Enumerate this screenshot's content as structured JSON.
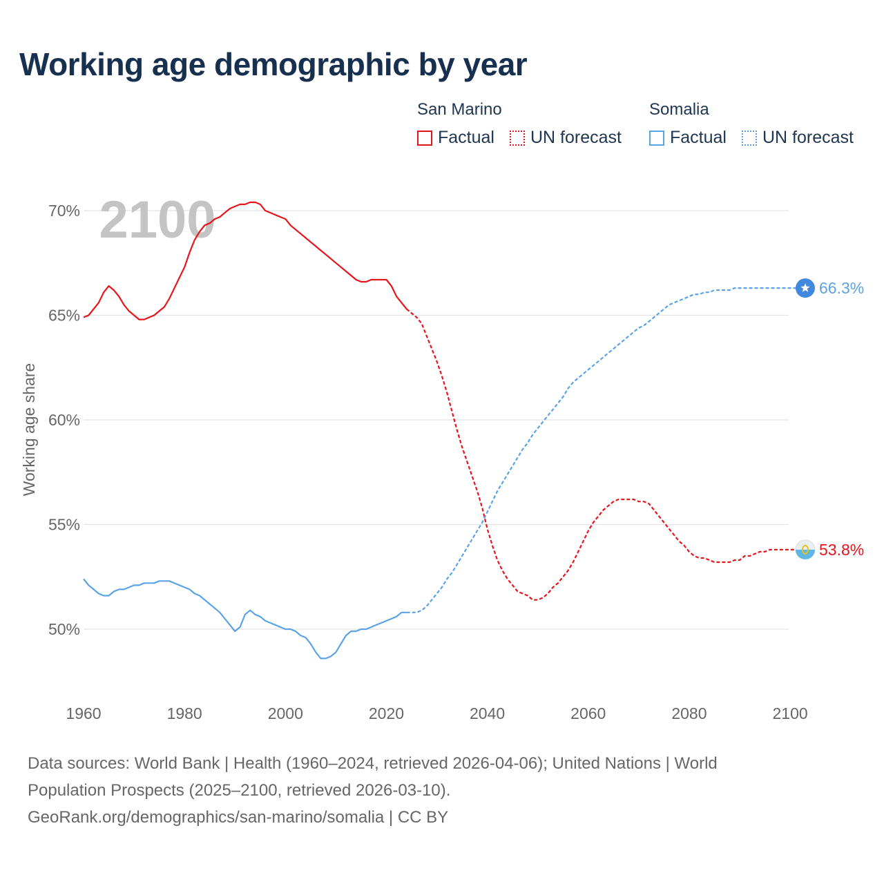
{
  "header": {
    "title": "Working age demographic by year"
  },
  "legend": {
    "groups": [
      {
        "name": "San Marino",
        "color": "#e8141c",
        "items": [
          {
            "label": "Factual",
            "style": "solid"
          },
          {
            "label": "UN forecast",
            "style": "dotted"
          }
        ]
      },
      {
        "name": "Somalia",
        "color": "#5aa3e6",
        "items": [
          {
            "label": "Factual",
            "style": "solid"
          },
          {
            "label": "UN forecast",
            "style": "dotted"
          }
        ]
      }
    ]
  },
  "chart_data": {
    "type": "line",
    "year_watermark": "2100",
    "ylabel": "Working age share",
    "xlabel": "",
    "xlim": [
      1960,
      2103
    ],
    "ylim": [
      47.0,
      71.5
    ],
    "x_ticks": [
      "1960",
      "1980",
      "2000",
      "2020",
      "2040",
      "2060",
      "2080",
      "2100"
    ],
    "y_ticks": [
      {
        "value": 50,
        "label": "50%"
      },
      {
        "value": 55,
        "label": "55%"
      },
      {
        "value": 60,
        "label": "60%"
      },
      {
        "value": 65,
        "label": "65%"
      },
      {
        "value": 70,
        "label": "70%"
      }
    ],
    "factual_end_year": 2024,
    "series": [
      {
        "name": "San Marino",
        "color": "#e8141c",
        "end_label": "53.8%",
        "end_icon": "san-marino-flag-icon",
        "points": [
          [
            1960,
            64.9
          ],
          [
            1961,
            65.0
          ],
          [
            1962,
            65.3
          ],
          [
            1963,
            65.6
          ],
          [
            1964,
            66.1
          ],
          [
            1965,
            66.4
          ],
          [
            1966,
            66.2
          ],
          [
            1967,
            65.9
          ],
          [
            1968,
            65.5
          ],
          [
            1969,
            65.2
          ],
          [
            1970,
            65.0
          ],
          [
            1971,
            64.8
          ],
          [
            1972,
            64.8
          ],
          [
            1973,
            64.9
          ],
          [
            1974,
            65.0
          ],
          [
            1975,
            65.2
          ],
          [
            1976,
            65.4
          ],
          [
            1977,
            65.8
          ],
          [
            1978,
            66.3
          ],
          [
            1979,
            66.8
          ],
          [
            1980,
            67.3
          ],
          [
            1981,
            68.0
          ],
          [
            1982,
            68.6
          ],
          [
            1983,
            69.0
          ],
          [
            1984,
            69.3
          ],
          [
            1985,
            69.4
          ],
          [
            1986,
            69.6
          ],
          [
            1987,
            69.7
          ],
          [
            1988,
            69.9
          ],
          [
            1989,
            70.1
          ],
          [
            1990,
            70.2
          ],
          [
            1991,
            70.3
          ],
          [
            1992,
            70.3
          ],
          [
            1993,
            70.4
          ],
          [
            1994,
            70.4
          ],
          [
            1995,
            70.3
          ],
          [
            1996,
            70.0
          ],
          [
            1997,
            69.9
          ],
          [
            1998,
            69.8
          ],
          [
            1999,
            69.7
          ],
          [
            2000,
            69.6
          ],
          [
            2001,
            69.3
          ],
          [
            2002,
            69.1
          ],
          [
            2003,
            68.9
          ],
          [
            2004,
            68.7
          ],
          [
            2005,
            68.5
          ],
          [
            2006,
            68.3
          ],
          [
            2007,
            68.1
          ],
          [
            2008,
            67.9
          ],
          [
            2009,
            67.7
          ],
          [
            2010,
            67.5
          ],
          [
            2011,
            67.3
          ],
          [
            2012,
            67.1
          ],
          [
            2013,
            66.9
          ],
          [
            2014,
            66.7
          ],
          [
            2015,
            66.6
          ],
          [
            2016,
            66.6
          ],
          [
            2017,
            66.7
          ],
          [
            2018,
            66.7
          ],
          [
            2019,
            66.7
          ],
          [
            2020,
            66.7
          ],
          [
            2021,
            66.4
          ],
          [
            2022,
            65.9
          ],
          [
            2023,
            65.6
          ],
          [
            2024,
            65.3
          ],
          [
            2025,
            65.1
          ],
          [
            2026,
            64.9
          ],
          [
            2027,
            64.6
          ],
          [
            2028,
            64.0
          ],
          [
            2029,
            63.4
          ],
          [
            2030,
            62.8
          ],
          [
            2031,
            62.1
          ],
          [
            2032,
            61.3
          ],
          [
            2033,
            60.4
          ],
          [
            2034,
            59.5
          ],
          [
            2035,
            58.7
          ],
          [
            2036,
            58.0
          ],
          [
            2037,
            57.3
          ],
          [
            2038,
            56.6
          ],
          [
            2039,
            55.8
          ],
          [
            2040,
            54.8
          ],
          [
            2041,
            54.0
          ],
          [
            2042,
            53.3
          ],
          [
            2043,
            52.8
          ],
          [
            2044,
            52.4
          ],
          [
            2045,
            52.1
          ],
          [
            2046,
            51.8
          ],
          [
            2047,
            51.7
          ],
          [
            2048,
            51.6
          ],
          [
            2049,
            51.4
          ],
          [
            2050,
            51.4
          ],
          [
            2051,
            51.5
          ],
          [
            2052,
            51.7
          ],
          [
            2053,
            52.0
          ],
          [
            2054,
            52.2
          ],
          [
            2055,
            52.5
          ],
          [
            2056,
            52.8
          ],
          [
            2057,
            53.2
          ],
          [
            2058,
            53.7
          ],
          [
            2059,
            54.2
          ],
          [
            2060,
            54.7
          ],
          [
            2061,
            55.1
          ],
          [
            2062,
            55.4
          ],
          [
            2063,
            55.7
          ],
          [
            2064,
            55.9
          ],
          [
            2065,
            56.1
          ],
          [
            2066,
            56.2
          ],
          [
            2067,
            56.2
          ],
          [
            2068,
            56.2
          ],
          [
            2069,
            56.2
          ],
          [
            2070,
            56.1
          ],
          [
            2071,
            56.1
          ],
          [
            2072,
            56.0
          ],
          [
            2073,
            55.7
          ],
          [
            2074,
            55.4
          ],
          [
            2075,
            55.1
          ],
          [
            2076,
            54.8
          ],
          [
            2077,
            54.5
          ],
          [
            2078,
            54.2
          ],
          [
            2079,
            54.0
          ],
          [
            2080,
            53.7
          ],
          [
            2081,
            53.5
          ],
          [
            2082,
            53.4
          ],
          [
            2083,
            53.4
          ],
          [
            2084,
            53.3
          ],
          [
            2085,
            53.2
          ],
          [
            2086,
            53.2
          ],
          [
            2087,
            53.2
          ],
          [
            2088,
            53.2
          ],
          [
            2089,
            53.3
          ],
          [
            2090,
            53.3
          ],
          [
            2091,
            53.5
          ],
          [
            2092,
            53.5
          ],
          [
            2093,
            53.6
          ],
          [
            2094,
            53.7
          ],
          [
            2095,
            53.7
          ],
          [
            2096,
            53.8
          ],
          [
            2097,
            53.8
          ],
          [
            2098,
            53.8
          ],
          [
            2099,
            53.8
          ],
          [
            2100,
            53.8
          ],
          [
            2103,
            53.8
          ]
        ]
      },
      {
        "name": "Somalia",
        "color": "#5aa3e6",
        "end_label": "66.3%",
        "end_icon": "somalia-flag-icon",
        "points": [
          [
            1960,
            52.4
          ],
          [
            1961,
            52.1
          ],
          [
            1962,
            51.9
          ],
          [
            1963,
            51.7
          ],
          [
            1964,
            51.6
          ],
          [
            1965,
            51.6
          ],
          [
            1966,
            51.8
          ],
          [
            1967,
            51.9
          ],
          [
            1968,
            51.9
          ],
          [
            1969,
            52.0
          ],
          [
            1970,
            52.1
          ],
          [
            1971,
            52.1
          ],
          [
            1972,
            52.2
          ],
          [
            1973,
            52.2
          ],
          [
            1974,
            52.2
          ],
          [
            1975,
            52.3
          ],
          [
            1976,
            52.3
          ],
          [
            1977,
            52.3
          ],
          [
            1978,
            52.2
          ],
          [
            1979,
            52.1
          ],
          [
            1980,
            52.0
          ],
          [
            1981,
            51.9
          ],
          [
            1982,
            51.7
          ],
          [
            1983,
            51.6
          ],
          [
            1984,
            51.4
          ],
          [
            1985,
            51.2
          ],
          [
            1986,
            51.0
          ],
          [
            1987,
            50.8
          ],
          [
            1988,
            50.5
          ],
          [
            1989,
            50.2
          ],
          [
            1990,
            49.9
          ],
          [
            1991,
            50.1
          ],
          [
            1992,
            50.7
          ],
          [
            1993,
            50.9
          ],
          [
            1994,
            50.7
          ],
          [
            1995,
            50.6
          ],
          [
            1996,
            50.4
          ],
          [
            1997,
            50.3
          ],
          [
            1998,
            50.2
          ],
          [
            1999,
            50.1
          ],
          [
            2000,
            50.0
          ],
          [
            2001,
            50.0
          ],
          [
            2002,
            49.9
          ],
          [
            2003,
            49.7
          ],
          [
            2004,
            49.6
          ],
          [
            2005,
            49.3
          ],
          [
            2006,
            48.9
          ],
          [
            2007,
            48.6
          ],
          [
            2008,
            48.6
          ],
          [
            2009,
            48.7
          ],
          [
            2010,
            48.9
          ],
          [
            2011,
            49.3
          ],
          [
            2012,
            49.7
          ],
          [
            2013,
            49.9
          ],
          [
            2014,
            49.9
          ],
          [
            2015,
            50.0
          ],
          [
            2016,
            50.0
          ],
          [
            2017,
            50.1
          ],
          [
            2018,
            50.2
          ],
          [
            2019,
            50.3
          ],
          [
            2020,
            50.4
          ],
          [
            2021,
            50.5
          ],
          [
            2022,
            50.6
          ],
          [
            2023,
            50.8
          ],
          [
            2024,
            50.8
          ],
          [
            2025,
            50.8
          ],
          [
            2026,
            50.8
          ],
          [
            2027,
            50.9
          ],
          [
            2028,
            51.1
          ],
          [
            2029,
            51.4
          ],
          [
            2030,
            51.7
          ],
          [
            2031,
            52.0
          ],
          [
            2032,
            52.4
          ],
          [
            2033,
            52.7
          ],
          [
            2034,
            53.1
          ],
          [
            2035,
            53.5
          ],
          [
            2036,
            53.9
          ],
          [
            2037,
            54.3
          ],
          [
            2038,
            54.7
          ],
          [
            2039,
            55.1
          ],
          [
            2040,
            55.6
          ],
          [
            2041,
            56.1
          ],
          [
            2042,
            56.6
          ],
          [
            2043,
            57.0
          ],
          [
            2044,
            57.4
          ],
          [
            2045,
            57.8
          ],
          [
            2046,
            58.2
          ],
          [
            2047,
            58.6
          ],
          [
            2048,
            58.9
          ],
          [
            2049,
            59.3
          ],
          [
            2050,
            59.6
          ],
          [
            2051,
            59.9
          ],
          [
            2052,
            60.2
          ],
          [
            2053,
            60.5
          ],
          [
            2054,
            60.8
          ],
          [
            2055,
            61.1
          ],
          [
            2056,
            61.5
          ],
          [
            2057,
            61.8
          ],
          [
            2058,
            62.0
          ],
          [
            2059,
            62.2
          ],
          [
            2060,
            62.4
          ],
          [
            2061,
            62.6
          ],
          [
            2062,
            62.8
          ],
          [
            2063,
            63.0
          ],
          [
            2064,
            63.2
          ],
          [
            2065,
            63.4
          ],
          [
            2066,
            63.6
          ],
          [
            2067,
            63.8
          ],
          [
            2068,
            64.0
          ],
          [
            2069,
            64.2
          ],
          [
            2070,
            64.4
          ],
          [
            2071,
            64.5
          ],
          [
            2072,
            64.7
          ],
          [
            2073,
            64.9
          ],
          [
            2074,
            65.1
          ],
          [
            2075,
            65.3
          ],
          [
            2076,
            65.5
          ],
          [
            2077,
            65.6
          ],
          [
            2078,
            65.7
          ],
          [
            2079,
            65.8
          ],
          [
            2080,
            65.9
          ],
          [
            2081,
            66.0
          ],
          [
            2082,
            66.0
          ],
          [
            2083,
            66.1
          ],
          [
            2084,
            66.1
          ],
          [
            2085,
            66.2
          ],
          [
            2086,
            66.2
          ],
          [
            2087,
            66.2
          ],
          [
            2088,
            66.2
          ],
          [
            2089,
            66.3
          ],
          [
            2090,
            66.3
          ],
          [
            2095,
            66.3
          ],
          [
            2100,
            66.3
          ],
          [
            2103,
            66.3
          ]
        ]
      }
    ]
  },
  "footer": {
    "line1": "Data sources: World Bank | Health (1960–2024, retrieved 2026-04-06); United Nations | World",
    "line2": "Population Prospects (2025–2100, retrieved 2026-03-10).",
    "line3": "GeoRank.org/demographics/san-marino/somalia | CC BY"
  }
}
